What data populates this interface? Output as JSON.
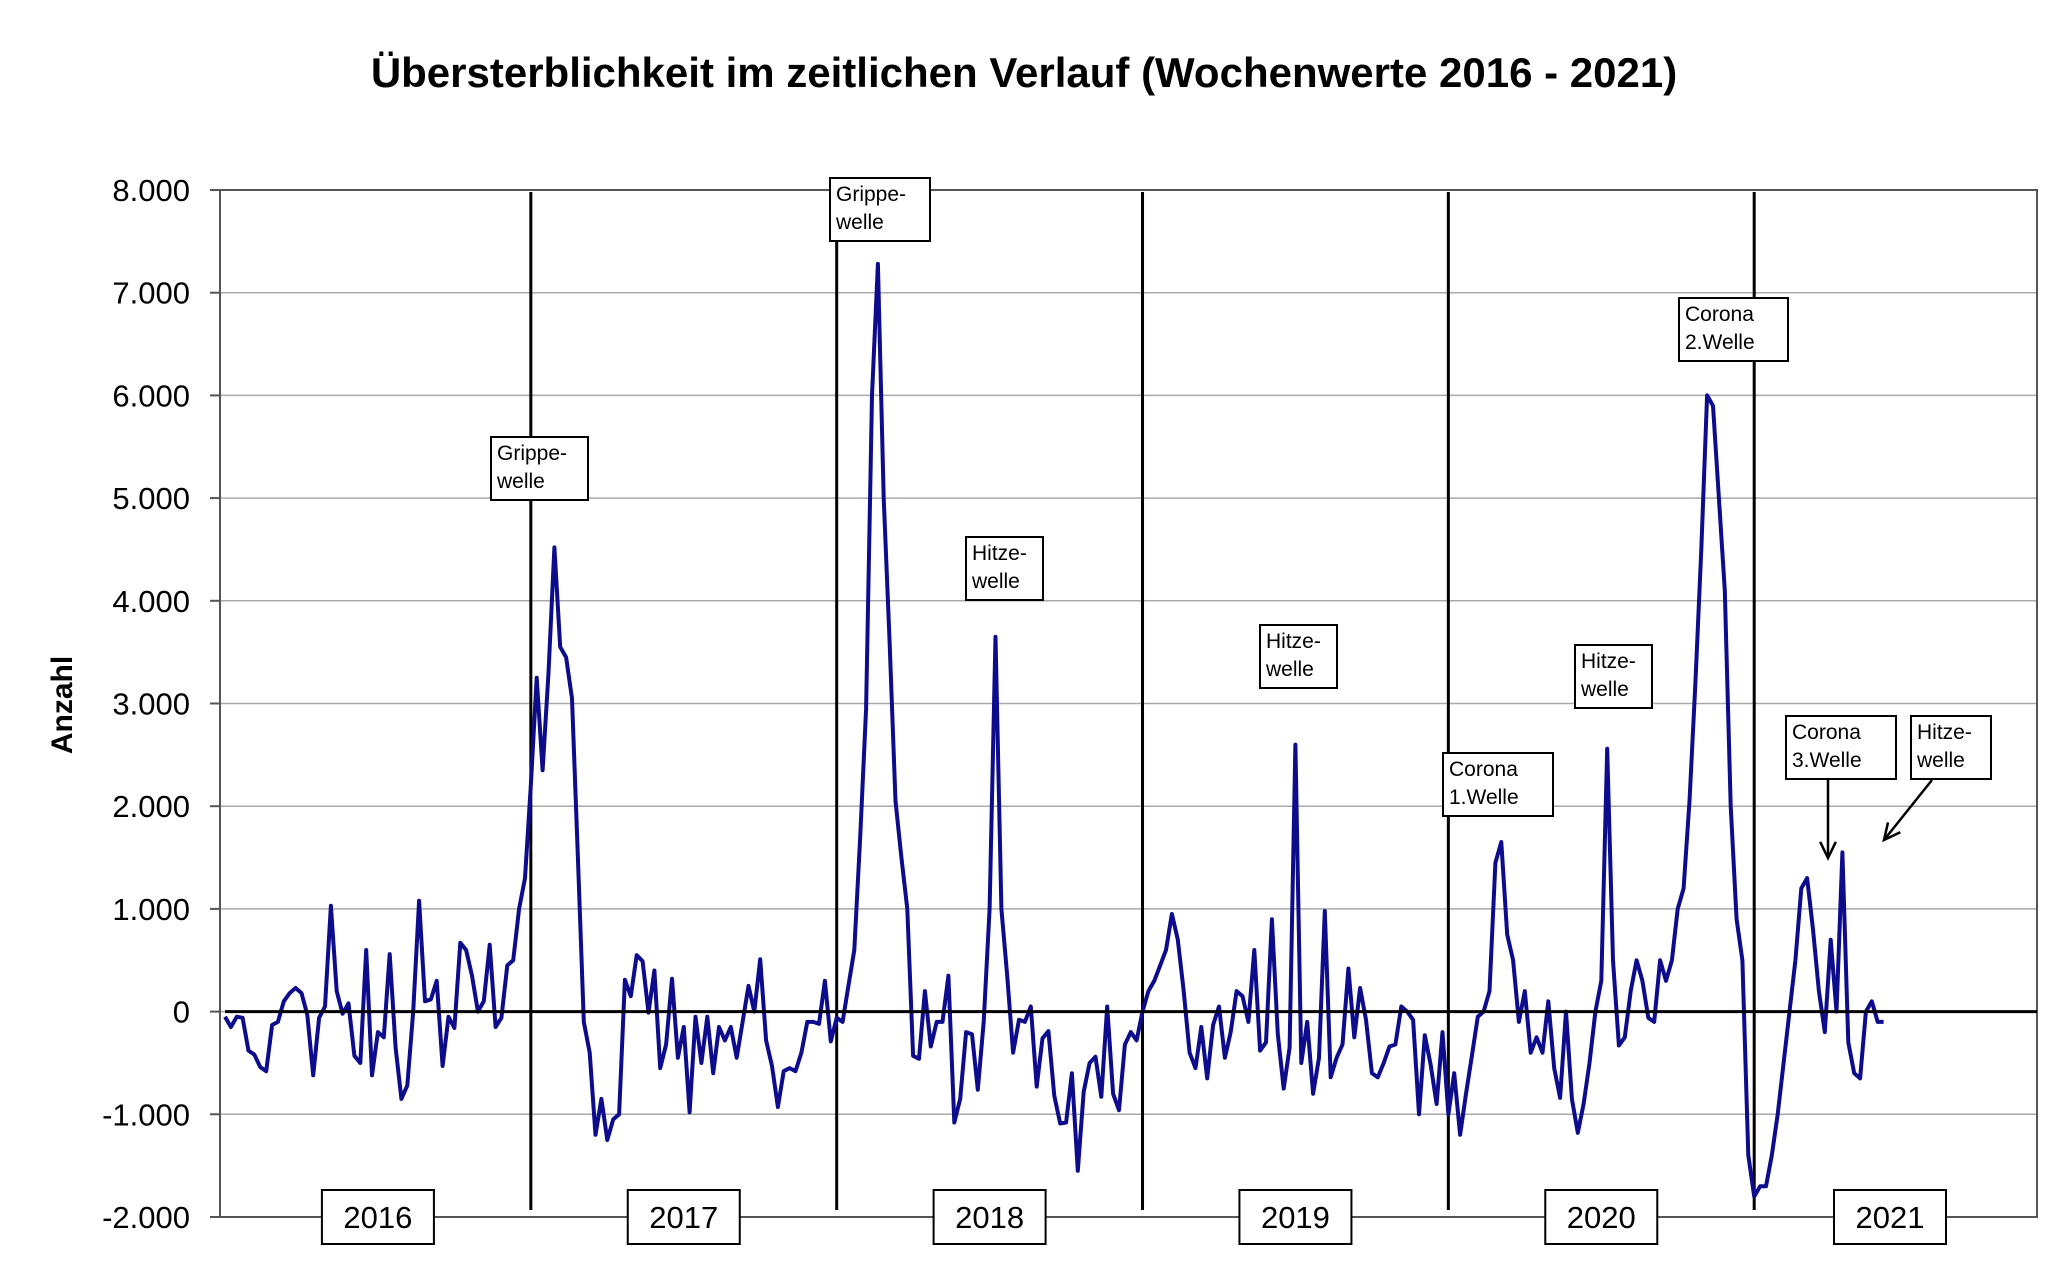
{
  "chart_data": {
    "type": "line",
    "title": "Übersterblichkeit im zeitlichen Verlauf (Wochenwerte 2016 - 2021)",
    "xlabel": "",
    "ylabel": "Anzahl",
    "ylim": [
      -2000,
      8000
    ],
    "yticks": [
      {
        "value": 8000,
        "label": "8.000"
      },
      {
        "value": 7000,
        "label": "7.000"
      },
      {
        "value": 6000,
        "label": "6.000"
      },
      {
        "value": 5000,
        "label": "5.000"
      },
      {
        "value": 4000,
        "label": "4.000"
      },
      {
        "value": 3000,
        "label": "3.000"
      },
      {
        "value": 2000,
        "label": "2.000"
      },
      {
        "value": 1000,
        "label": "1.000"
      },
      {
        "value": 0,
        "label": "0"
      },
      {
        "value": -1000,
        "label": "-1.000"
      },
      {
        "value": -2000,
        "label": "-2.000"
      }
    ],
    "grid": "horizontal",
    "line_color": "#0c0c8c",
    "years": [
      "2016",
      "2017",
      "2018",
      "2019",
      "2020",
      "2021"
    ],
    "year_boundaries_week": [
      52,
      104,
      156,
      208,
      260
    ],
    "x_week_max": 287,
    "series": [
      {
        "values": [
          -50,
          -150,
          -50,
          -60,
          -380,
          -420,
          -540,
          -580,
          -130,
          -100,
          100,
          180,
          230,
          180,
          -30,
          -620,
          -60,
          50,
          1030,
          200,
          -20,
          80,
          -430,
          -500,
          600,
          -620,
          -200,
          -250,
          560,
          -350,
          -850,
          -720,
          0,
          1080,
          100,
          120,
          300,
          -530,
          -50,
          -160,
          670,
          600,
          350,
          0,
          100,
          650,
          -150,
          -60,
          450,
          500,
          1000,
          1300,
          2200,
          3250,
          2350,
          3300,
          4520,
          3550,
          3450,
          3050,
          1500,
          -100,
          -400,
          -1200,
          -850,
          -1250,
          -1050,
          -1000,
          310,
          150,
          550,
          490,
          -10,
          400,
          -550,
          -320,
          320,
          -450,
          -150,
          -980,
          -50,
          -500,
          -50,
          -600,
          -150,
          -280,
          -150,
          -450,
          -100,
          250,
          0,
          510,
          -280,
          -530,
          -930,
          -580,
          -550,
          -580,
          -400,
          -100,
          -100,
          -120,
          300,
          -290,
          -60,
          -100,
          250,
          600,
          1700,
          2950,
          6000,
          7280,
          5000,
          3600,
          2050,
          1500,
          1000,
          -430,
          -460,
          200,
          -340,
          -100,
          -100,
          350,
          -1080,
          -850,
          -200,
          -220,
          -760,
          -100,
          1000,
          3650,
          1000,
          350,
          -400,
          -80,
          -100,
          50,
          -730,
          -260,
          -190,
          -820,
          -1090,
          -1080,
          -600,
          -1550,
          -780,
          -500,
          -440,
          -830,
          50,
          -800,
          -960,
          -320,
          -200,
          -280,
          0,
          200,
          300,
          450,
          600,
          950,
          700,
          200,
          -400,
          -550,
          -150,
          -650,
          -130,
          50,
          -450,
          -200,
          200,
          150,
          -100,
          600,
          -380,
          -300,
          900,
          -220,
          -750,
          -350,
          2600,
          -500,
          -100,
          -800,
          -450,
          980,
          -640,
          -450,
          -320,
          420,
          -250,
          230,
          -80,
          -600,
          -640,
          -500,
          -340,
          -320,
          50,
          0,
          -80,
          -1000,
          -230,
          -520,
          -900,
          -200,
          -1000,
          -600,
          -1200,
          -800,
          -430,
          -50,
          0,
          200,
          1450,
          1650,
          750,
          500,
          -100,
          200,
          -400,
          -250,
          -400,
          100,
          -550,
          -840,
          0,
          -850,
          -1180,
          -900,
          -500,
          0,
          300,
          2560,
          500,
          -330,
          -250,
          200,
          500,
          300,
          -60,
          -100,
          500,
          300,
          500,
          1000,
          1200,
          2050,
          3200,
          4500,
          6000,
          5900,
          5000,
          4100,
          2000,
          900,
          500,
          -1400,
          -1800,
          -1700,
          -1700,
          -1400,
          -1000,
          -500,
          0,
          500,
          1200,
          1300,
          800,
          200,
          -200,
          700,
          0,
          1550,
          -300,
          -600,
          -650,
          0,
          100,
          -100,
          -100
        ]
      }
    ],
    "annotations": [
      {
        "id": "grippe-2017",
        "lines": [
          "Grippe-",
          "welle"
        ],
        "week": 56
      },
      {
        "id": "grippe-2018",
        "lines": [
          "Grippe-",
          "welle"
        ],
        "week": 109
      },
      {
        "id": "hitze-2018",
        "lines": [
          "Hitze-",
          "welle"
        ],
        "week": 133
      },
      {
        "id": "hitze-2019",
        "lines": [
          "Hitze-",
          "welle"
        ],
        "week": 186
      },
      {
        "id": "corona-1",
        "lines": [
          "Corona",
          "1.Welle"
        ],
        "week": 222
      },
      {
        "id": "hitze-2020",
        "lines": [
          "Hitze-",
          "welle"
        ],
        "week": 241
      },
      {
        "id": "corona-2",
        "lines": [
          "Corona",
          "2.Welle"
        ],
        "week": 259
      },
      {
        "id": "corona-3",
        "lines": [
          "Corona",
          "3.Welle"
        ],
        "week": 277
      },
      {
        "id": "hitze-2021",
        "lines": [
          "Hitze-",
          "welle"
        ],
        "week": 282
      }
    ]
  }
}
